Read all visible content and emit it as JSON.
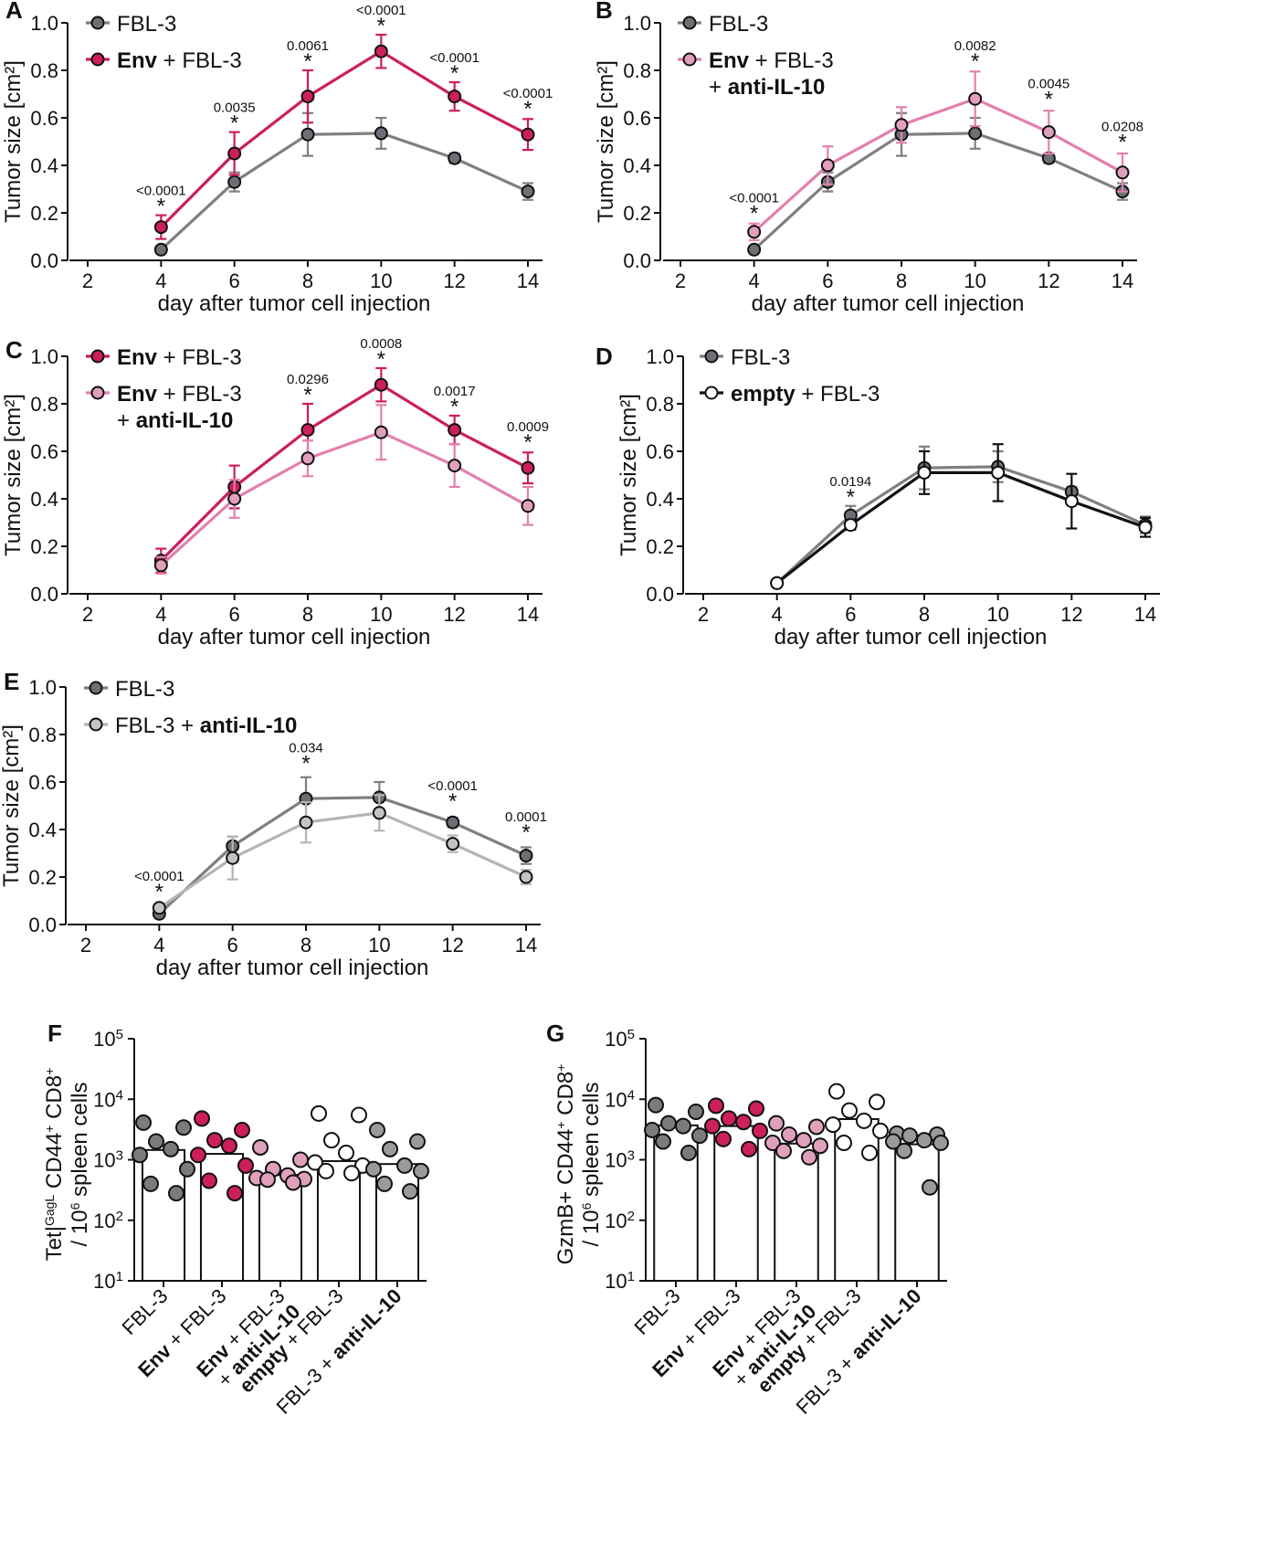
{
  "chart_data": [
    {
      "panel": "A",
      "type": "line",
      "xlabel": "day after tumor cell injection",
      "ylabel": "Tumor size [cm²]",
      "xlim": [
        2,
        14
      ],
      "ylim": [
        0,
        1.0
      ],
      "xticks": [
        "2",
        "4",
        "6",
        "8",
        "10",
        "12",
        "14"
      ],
      "yticks": [
        "0.0",
        "0.2",
        "0.4",
        "0.6",
        "0.8",
        "1.0"
      ],
      "legend": [
        {
          "key": "FBL-3",
          "parts": [
            {
              "t": "FBL-3",
              "b": false
            }
          ]
        },
        {
          "key": "Env + FBL-3",
          "parts": [
            {
              "t": "Env",
              "b": true
            },
            {
              "t": " + FBL-3",
              "b": false
            }
          ]
        }
      ],
      "series": [
        {
          "name": "FBL-3",
          "line": "#7f7f7f",
          "fill": "#6d6f76",
          "x": [
            4,
            6,
            8,
            10,
            12,
            14
          ],
          "y": [
            0.045,
            0.33,
            0.53,
            0.535,
            0.43,
            0.29
          ],
          "err": [
            0.01,
            0.04,
            0.09,
            0.065,
            0.02,
            0.035
          ]
        },
        {
          "name": "Env + FBL-3",
          "line": "#cc1f5c",
          "fill": "#cc1f5c",
          "x": [
            4,
            6,
            8,
            10,
            12,
            14
          ],
          "y": [
            0.14,
            0.45,
            0.69,
            0.88,
            0.69,
            0.53
          ],
          "err": [
            0.05,
            0.09,
            0.11,
            0.07,
            0.06,
            0.065
          ]
        }
      ],
      "annotations": [
        {
          "x": 4,
          "y": 0.19,
          "p": "<0.0001"
        },
        {
          "x": 6,
          "y": 0.54,
          "p": "0.0035"
        },
        {
          "x": 8,
          "y": 0.8,
          "p": "0.0061"
        },
        {
          "x": 10,
          "y": 0.95,
          "p": "<0.0001"
        },
        {
          "x": 12,
          "y": 0.75,
          "p": "<0.0001"
        },
        {
          "x": 14,
          "y": 0.6,
          "p": "<0.0001"
        }
      ]
    },
    {
      "panel": "B",
      "type": "line",
      "xlabel": "day after tumor cell injection",
      "ylabel": "Tumor size [cm²]",
      "xlim": [
        2,
        14
      ],
      "ylim": [
        0,
        1.0
      ],
      "xticks": [
        "2",
        "4",
        "6",
        "8",
        "10",
        "12",
        "14"
      ],
      "yticks": [
        "0.0",
        "0.2",
        "0.4",
        "0.6",
        "0.8",
        "1.0"
      ],
      "legend": [
        {
          "key": "FBL-3",
          "parts": [
            {
              "t": "FBL-3",
              "b": false
            }
          ]
        },
        {
          "key": "Env + FBL-3",
          "parts": [
            {
              "t": "Env",
              "b": true
            },
            {
              "t": " + FBL-3",
              "b": false
            }
          ],
          "line2": [
            {
              "t": "+ ",
              "b": false
            },
            {
              "t": "anti-IL-10",
              "b": true
            }
          ]
        }
      ],
      "series": [
        {
          "name": "FBL-3",
          "line": "#7f7f7f",
          "fill": "#6d6f76",
          "x": [
            4,
            6,
            8,
            10,
            12,
            14
          ],
          "y": [
            0.045,
            0.33,
            0.53,
            0.535,
            0.43,
            0.29
          ],
          "err": [
            0.01,
            0.04,
            0.09,
            0.065,
            0.02,
            0.035
          ]
        },
        {
          "name": "Env + FBL-3 + anti-IL-10",
          "line": "#e47fae",
          "fill": "#e0a0bc",
          "x": [
            4,
            6,
            8,
            10,
            12,
            14
          ],
          "y": [
            0.12,
            0.4,
            0.57,
            0.68,
            0.54,
            0.37
          ],
          "err": [
            0.035,
            0.08,
            0.075,
            0.115,
            0.09,
            0.08
          ]
        }
      ],
      "annotations": [
        {
          "x": 4,
          "y": 0.16,
          "p": "<0.0001"
        },
        {
          "x": 10,
          "y": 0.8,
          "p": "0.0082"
        },
        {
          "x": 12,
          "y": 0.64,
          "p": "0.0045"
        },
        {
          "x": 14,
          "y": 0.46,
          "p": "0.0208"
        }
      ]
    },
    {
      "panel": "C",
      "type": "line",
      "xlabel": "day after tumor cell injection",
      "ylabel": "Tumor size [cm²]",
      "xlim": [
        2,
        14
      ],
      "ylim": [
        0,
        1.0
      ],
      "xticks": [
        "2",
        "4",
        "6",
        "8",
        "10",
        "12",
        "14"
      ],
      "yticks": [
        "0.0",
        "0.2",
        "0.4",
        "0.6",
        "0.8",
        "1.0"
      ],
      "legend": [
        {
          "key": "Env + FBL-3",
          "parts": [
            {
              "t": "Env",
              "b": true
            },
            {
              "t": " + FBL-3",
              "b": false
            }
          ]
        },
        {
          "key": "Env + FBL-3 + anti-IL-10",
          "parts": [
            {
              "t": "Env",
              "b": true
            },
            {
              "t": " + FBL-3",
              "b": false
            }
          ],
          "line2": [
            {
              "t": "+ ",
              "b": false
            },
            {
              "t": "anti-IL-10",
              "b": true
            }
          ]
        }
      ],
      "series": [
        {
          "name": "Env + FBL-3",
          "line": "#cc1f5c",
          "fill": "#cc1f5c",
          "x": [
            4,
            6,
            8,
            10,
            12,
            14
          ],
          "y": [
            0.14,
            0.45,
            0.69,
            0.88,
            0.69,
            0.53
          ],
          "err": [
            0.05,
            0.09,
            0.11,
            0.07,
            0.06,
            0.065
          ]
        },
        {
          "name": "Env + FBL-3 + anti-IL-10",
          "line": "#e47fae",
          "fill": "#e0a0bc",
          "x": [
            4,
            6,
            8,
            10,
            12,
            14
          ],
          "y": [
            0.12,
            0.4,
            0.57,
            0.68,
            0.54,
            0.37
          ],
          "err": [
            0.035,
            0.08,
            0.075,
            0.115,
            0.09,
            0.08
          ]
        }
      ],
      "annotations": [
        {
          "x": 8,
          "y": 0.8,
          "p": "0.0296"
        },
        {
          "x": 10,
          "y": 0.95,
          "p": "0.0008"
        },
        {
          "x": 12,
          "y": 0.75,
          "p": "0.0017"
        },
        {
          "x": 14,
          "y": 0.6,
          "p": "0.0009"
        }
      ]
    },
    {
      "panel": "D",
      "type": "line",
      "xlabel": "day after tumor cell injection",
      "ylabel": "Tumor size [cm²]",
      "xlim": [
        2,
        14
      ],
      "ylim": [
        0,
        1.0
      ],
      "xticks": [
        "2",
        "4",
        "6",
        "8",
        "10",
        "12",
        "14"
      ],
      "yticks": [
        "0.0",
        "0.2",
        "0.4",
        "0.6",
        "0.8",
        "1.0"
      ],
      "legend": [
        {
          "key": "FBL-3",
          "parts": [
            {
              "t": "FBL-3",
              "b": false
            }
          ]
        },
        {
          "key": "empty + FBL-3",
          "parts": [
            {
              "t": "empty",
              "b": true
            },
            {
              "t": " + FBL-3",
              "b": false
            }
          ]
        }
      ],
      "series": [
        {
          "name": "FBL-3",
          "line": "#7f7f7f",
          "fill": "#6d6f76",
          "x": [
            4,
            6,
            8,
            10,
            12,
            14
          ],
          "y": [
            0.045,
            0.33,
            0.53,
            0.535,
            0.43,
            0.29
          ],
          "err": [
            0.01,
            0.04,
            0.09,
            0.065,
            0.02,
            0.035
          ]
        },
        {
          "name": "empty + FBL-3",
          "line": "#111111",
          "fill": "#ffffff",
          "x": [
            4,
            6,
            8,
            10,
            12,
            14
          ],
          "y": [
            0.045,
            0.29,
            0.51,
            0.51,
            0.39,
            0.28
          ],
          "err": [
            0.01,
            0.02,
            0.09,
            0.12,
            0.115,
            0.04
          ]
        }
      ],
      "annotations": [
        {
          "x": 6,
          "y": 0.37,
          "p": "0.0194"
        }
      ]
    },
    {
      "panel": "E",
      "type": "line",
      "xlabel": "day after tumor cell injection",
      "ylabel": "Tumor size [cm²]",
      "xlim": [
        2,
        14
      ],
      "ylim": [
        0,
        1.0
      ],
      "xticks": [
        "2",
        "4",
        "6",
        "8",
        "10",
        "12",
        "14"
      ],
      "yticks": [
        "0.0",
        "0.2",
        "0.4",
        "0.6",
        "0.8",
        "1.0"
      ],
      "legend": [
        {
          "key": "FBL-3",
          "parts": [
            {
              "t": "FBL-3",
              "b": false
            }
          ]
        },
        {
          "key": "FBL-3 + anti-IL-10",
          "parts": [
            {
              "t": "FBL-3 + ",
              "b": false
            },
            {
              "t": "anti-IL-10",
              "b": true
            }
          ]
        }
      ],
      "series": [
        {
          "name": "FBL-3",
          "line": "#7f7f7f",
          "fill": "#6d6f76",
          "x": [
            4,
            6,
            8,
            10,
            12,
            14
          ],
          "y": [
            0.045,
            0.33,
            0.53,
            0.535,
            0.43,
            0.29
          ],
          "err": [
            0.01,
            0.04,
            0.09,
            0.065,
            0.02,
            0.035
          ]
        },
        {
          "name": "FBL-3 + anti-IL-10",
          "line": "#b5b5b5",
          "fill": "#c4c4c4",
          "x": [
            4,
            6,
            8,
            10,
            12,
            14
          ],
          "y": [
            0.07,
            0.28,
            0.43,
            0.47,
            0.34,
            0.2
          ],
          "err": [
            0.01,
            0.09,
            0.085,
            0.075,
            0.035,
            0.03
          ]
        }
      ],
      "annotations": [
        {
          "x": 4,
          "y": 0.1,
          "p": "<0.0001"
        },
        {
          "x": 8,
          "y": 0.64,
          "p": "0.034"
        },
        {
          "x": 12,
          "y": 0.48,
          "p": "<0.0001"
        },
        {
          "x": 14,
          "y": 0.35,
          "p": "0.0001"
        }
      ]
    },
    {
      "panel": "F",
      "type": "bar",
      "scale": "log",
      "ylabel_lines": [
        "Tet|GagL CD44+ CD8+",
        "/ 10^6 spleen cells"
      ],
      "ylabel_parts_1": [
        {
          "t": "Tet|",
          "s": ""
        },
        {
          "t": "GagL",
          "s": "sup"
        },
        {
          "t": " CD44",
          "s": ""
        },
        {
          "t": "+",
          "s": "sup"
        },
        {
          "t": " CD8",
          "s": ""
        },
        {
          "t": "+",
          "s": "sup"
        }
      ],
      "ylabel_parts_2": [
        {
          "t": "/ 10",
          "s": ""
        },
        {
          "t": "6",
          "s": "sup"
        },
        {
          "t": " spleen cells",
          "s": ""
        }
      ],
      "ylim": [
        10,
        100000
      ],
      "yticks_exp": [
        "1",
        "2",
        "3",
        "4",
        "5"
      ],
      "ytick_base": "10",
      "categories": [
        {
          "name": "FBL-3",
          "line1": [
            {
              "t": "FBL-3",
              "b": false
            }
          ]
        },
        {
          "name": "Env + FBL-3",
          "line1": [
            {
              "t": "Env",
              "b": true
            },
            {
              "t": " + FBL-3",
              "b": false
            }
          ]
        },
        {
          "name": "Env + FBL-3 + anti-IL-10",
          "line1": [
            {
              "t": "Env",
              "b": true
            },
            {
              "t": " + FBL-3",
              "b": false
            }
          ],
          "line2": [
            {
              "t": "+ ",
              "b": false
            },
            {
              "t": "anti-IL-10",
              "b": true
            }
          ]
        },
        {
          "name": "empty + FBL-3",
          "line1": [
            {
              "t": "empty",
              "b": true
            },
            {
              "t": " + FBL-3",
              "b": false
            }
          ]
        },
        {
          "name": "FBL-3 + anti-IL-10",
          "line1": [
            {
              "t": "FBL-3 + ",
              "b": false
            },
            {
              "t": "anti-IL-10",
              "b": true
            }
          ]
        }
      ],
      "bar_values": [
        1450,
        1250,
        560,
        950,
        850
      ],
      "dot_fills": [
        "#7b7b7b",
        "#cc1f5c",
        "#e0a0bc",
        "#ffffff",
        "#9a9a9a"
      ],
      "points": [
        [
          4100,
          3400,
          2000,
          1500,
          1200,
          700,
          400,
          280
        ],
        [
          4800,
          3100,
          2100,
          1700,
          1200,
          800,
          450,
          280
        ],
        [
          1600,
          1000,
          700,
          550,
          500,
          480,
          470,
          420
        ],
        [
          5800,
          5500,
          2100,
          1300,
          900,
          800,
          650,
          600
        ],
        [
          3100,
          2000,
          1500,
          800,
          700,
          650,
          400,
          300
        ]
      ]
    },
    {
      "panel": "G",
      "type": "bar",
      "scale": "log",
      "ylabel_parts_1": [
        {
          "t": "GzmB+ CD44",
          "s": ""
        },
        {
          "t": "+",
          "s": "sup"
        },
        {
          "t": " CD8",
          "s": ""
        },
        {
          "t": "+",
          "s": "sup"
        }
      ],
      "ylabel_parts_2": [
        {
          "t": "/ 10",
          "s": ""
        },
        {
          "t": "6",
          "s": "sup"
        },
        {
          "t": " spleen cells",
          "s": ""
        }
      ],
      "ylim": [
        10,
        100000
      ],
      "yticks_exp": [
        "1",
        "2",
        "3",
        "4",
        "5"
      ],
      "ytick_base": "10",
      "categories": [
        {
          "name": "FBL-3",
          "line1": [
            {
              "t": "FBL-3",
              "b": false
            }
          ]
        },
        {
          "name": "Env + FBL-3",
          "line1": [
            {
              "t": "Env",
              "b": true
            },
            {
              "t": " + FBL-3",
              "b": false
            }
          ]
        },
        {
          "name": "Env + FBL-3 + anti-IL-10",
          "line1": [
            {
              "t": "Env",
              "b": true
            },
            {
              "t": " + FBL-3",
              "b": false
            }
          ],
          "line2": [
            {
              "t": "+ ",
              "b": false
            },
            {
              "t": "anti-IL-10",
              "b": true
            }
          ]
        },
        {
          "name": "empty + FBL-3",
          "line1": [
            {
              "t": "empty",
              "b": true
            },
            {
              "t": " + FBL-3",
              "b": false
            }
          ]
        },
        {
          "name": "FBL-3 + anti-IL-10",
          "line1": [
            {
              "t": "FBL-3 + ",
              "b": false
            },
            {
              "t": "anti-IL-10",
              "b": true
            }
          ]
        }
      ],
      "bar_values": [
        3700,
        3600,
        1850,
        4700,
        1800
      ],
      "dot_fills": [
        "#7b7b7b",
        "#cc1f5c",
        "#e0a0bc",
        "#ffffff",
        "#9a9a9a"
      ],
      "points": [
        [
          8000,
          6200,
          4000,
          3600,
          3100,
          2500,
          2000,
          1300
        ],
        [
          7800,
          7000,
          4800,
          4200,
          3600,
          3000,
          2200,
          1500
        ],
        [
          4000,
          3500,
          2600,
          2100,
          1900,
          1700,
          1400,
          1100
        ],
        [
          13500,
          9000,
          6500,
          4400,
          3800,
          3000,
          1900,
          1300
        ],
        [
          2700,
          2600,
          2500,
          2100,
          2000,
          1900,
          1400,
          350
        ]
      ]
    }
  ]
}
